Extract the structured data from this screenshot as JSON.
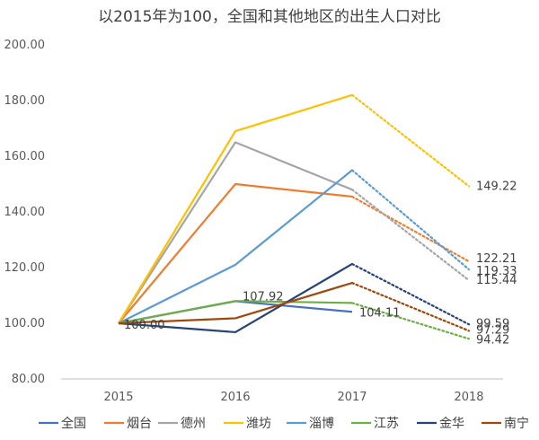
{
  "chart_data": {
    "type": "line",
    "title": "以2015年为100，全国和其他地区的出生人口对比",
    "categories": [
      "2015",
      "2016",
      "2017",
      "2018"
    ],
    "ylim": [
      80,
      200
    ],
    "ytick_labels": [
      "80.00",
      "100.00",
      "120.00",
      "140.00",
      "160.00",
      "180.00",
      "200.00"
    ],
    "grid": false,
    "legend_position": "bottom",
    "note": "2018 values shown with dotted segments (projected)",
    "series": [
      {
        "name": "全国",
        "color": "#4472C4",
        "values": [
          100,
          107.92,
          104.11,
          null
        ]
      },
      {
        "name": "烟台",
        "color": "#ED7D31",
        "values": [
          100,
          150,
          145.5,
          122.21
        ]
      },
      {
        "name": "德州",
        "color": "#A5A5A5",
        "values": [
          100,
          165,
          148,
          115.44
        ]
      },
      {
        "name": "潍坊",
        "color": "#FFC000",
        "values": [
          100,
          169,
          182,
          149.22
        ]
      },
      {
        "name": "淄博",
        "color": "#5B9BD5",
        "values": [
          100,
          121,
          155,
          119.33
        ]
      },
      {
        "name": "江苏",
        "color": "#70AD47",
        "values": [
          100,
          108,
          107.3,
          94.42
        ]
      },
      {
        "name": "金华",
        "color": "#264478",
        "values": [
          100,
          96.8,
          121.3,
          99.59
        ]
      },
      {
        "name": "南宁",
        "color": "#9E480E",
        "values": [
          100,
          101.8,
          114.5,
          97.29
        ]
      }
    ],
    "data_labels": [
      {
        "series": "全国",
        "index": 0,
        "text": "100.00"
      },
      {
        "series": "全国",
        "index": 1,
        "text": "107.92"
      },
      {
        "series": "全国",
        "index": 2,
        "text": "104.11"
      },
      {
        "series": "潍坊",
        "index": 3,
        "text": "149.22"
      },
      {
        "series": "烟台",
        "index": 3,
        "text": "122.21"
      },
      {
        "series": "淄博",
        "index": 3,
        "text": "119.33"
      },
      {
        "series": "德州",
        "index": 3,
        "text": "115.44"
      },
      {
        "series": "金华",
        "index": 3,
        "text": "99.59"
      },
      {
        "series": "南宁",
        "index": 3,
        "text": "97.29"
      },
      {
        "series": "江苏",
        "index": 3,
        "text": "94.42"
      }
    ]
  }
}
